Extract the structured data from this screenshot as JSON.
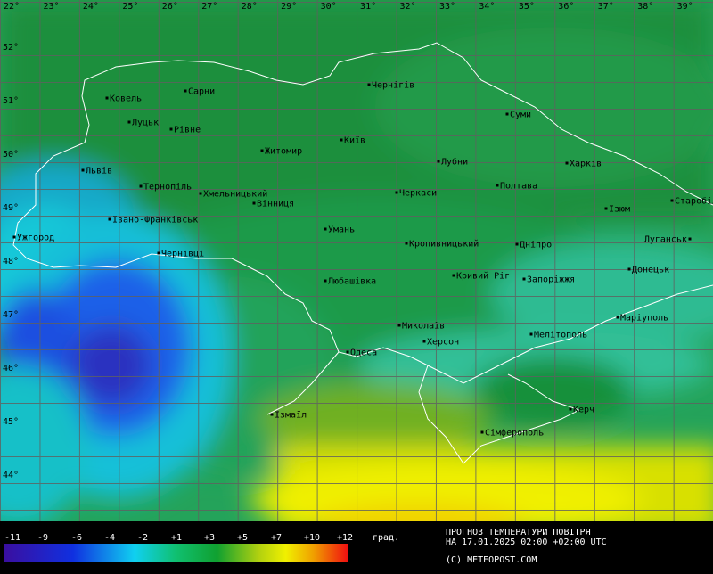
{
  "longitudes": [
    "22°",
    "23°",
    "24°",
    "25°",
    "26°",
    "27°",
    "28°",
    "29°",
    "30°",
    "31°",
    "32°",
    "33°",
    "34°",
    "35°",
    "36°",
    "37°",
    "38°",
    "39°"
  ],
  "latitudes": [
    "52°",
    "51°",
    "50°",
    "49°",
    "48°",
    "47°",
    "46°",
    "45°",
    "44°"
  ],
  "cities": [
    "Ковель",
    "Сарни",
    "Чернігів",
    "Луцьк",
    "Рівне",
    "Суми",
    "Київ",
    "Житомир",
    "Львів",
    "Лубни",
    "Харків",
    "Тернопіль",
    "Хмельницький",
    "Полтава",
    "Черкаси",
    "Вінниця",
    "Старобільськ",
    "Ізюм",
    "Івано-Франківськ",
    "Умань",
    "Ужгород",
    "Луганськ",
    "Кропивницький",
    "Дніпро",
    "Чернівці",
    "Донецьк",
    "Кривий Ріг",
    "Запоріжжя",
    "Любашівка",
    "Маріуполь",
    "Миколаїв",
    "Мелітополь",
    "Херсон",
    "Одеса",
    "Керч",
    "Ізмаїл",
    "Сімферополь"
  ],
  "legend": {
    "labels": [
      "-11",
      "-9",
      "-6",
      "-4",
      "-2",
      "+1",
      "+3",
      "+5",
      "+7",
      "+10",
      "+12"
    ],
    "unit": "град."
  },
  "footer": {
    "title": "ПРОГНОЗ ТЕМПЕРАТУРИ ПОВІТРЯ",
    "date": "НА 17.01.2025 02:00 +02:00 UTC",
    "copyright": "(C) METEOPOST.COM"
  }
}
